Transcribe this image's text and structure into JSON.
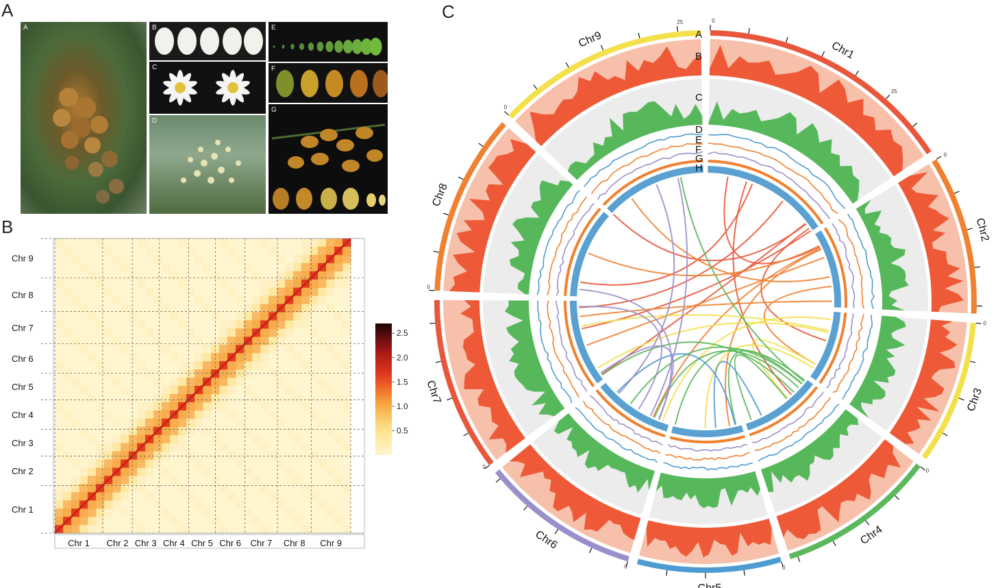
{
  "panels": {
    "a": "A",
    "b": "B",
    "c": "C"
  },
  "photos": [
    {
      "tag": "A",
      "subject": "fruit-cluster-on-tree"
    },
    {
      "tag": "B",
      "subject": "flower-buds"
    },
    {
      "tag": "C",
      "subject": "open-flowers"
    },
    {
      "tag": "D",
      "subject": "inflorescence"
    },
    {
      "tag": "E",
      "subject": "fruit-development-series"
    },
    {
      "tag": "F",
      "subject": "mature-fruits"
    },
    {
      "tag": "G",
      "subject": "fruit-panicle-and-sections"
    }
  ],
  "heatmap": {
    "chromosomes": [
      "Chr 1",
      "Chr 2",
      "Chr 3",
      "Chr 4",
      "Chr 5",
      "Chr 6",
      "Chr 7",
      "Chr 8",
      "Chr 9"
    ],
    "colorbar_ticks": [
      "2.5",
      "2.0",
      "1.5",
      "1.0",
      "0.5"
    ],
    "colors": [
      "#fff6cf",
      "#fde08a",
      "#f7a23a",
      "#e43d1e",
      "#a01515",
      "#1a0505"
    ]
  },
  "circos": {
    "chromosomes": [
      {
        "name": "Chr1",
        "color": "#e8563b"
      },
      {
        "name": "Chr2",
        "color": "#ef8131"
      },
      {
        "name": "Chr3",
        "color": "#f3e04b"
      },
      {
        "name": "Chr4",
        "color": "#5cb85c"
      },
      {
        "name": "Chr5",
        "color": "#4e9bd1"
      },
      {
        "name": "Chr6",
        "color": "#9a8fcb"
      },
      {
        "name": "Chr7",
        "color": "#e8563b"
      },
      {
        "name": "Chr8",
        "color": "#ef8131"
      },
      {
        "name": "Chr9",
        "color": "#f3e04b"
      }
    ],
    "track_labels": [
      "A",
      "B",
      "C",
      "D",
      "E",
      "F",
      "G",
      "H"
    ],
    "tick_labels": [
      "0",
      "25"
    ],
    "track_colors": {
      "density": "#ee5a38",
      "density_light": "#f7c0aa",
      "green": "#57b85b",
      "blue": "#4e9bd1",
      "orange": "#ef8131",
      "purple": "#9a8fcb",
      "inner": "#5aa1d2"
    }
  }
}
